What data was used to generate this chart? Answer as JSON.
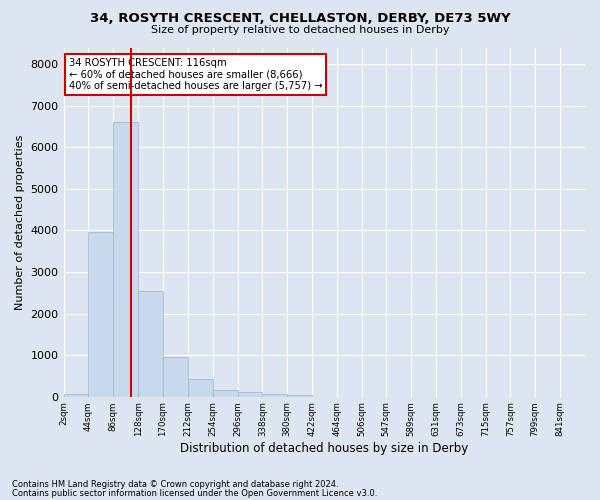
{
  "title1": "34, ROSYTH CRESCENT, CHELLASTON, DERBY, DE73 5WY",
  "title2": "Size of property relative to detached houses in Derby",
  "xlabel": "Distribution of detached houses by size in Derby",
  "ylabel": "Number of detached properties",
  "bar_color": "#c8d9ec",
  "bar_edgecolor": "#9ab4d0",
  "vline_x": 116,
  "vline_color": "#cc0000",
  "annotation_title": "34 ROSYTH CRESCENT: 116sqm",
  "annotation_line1": "← 60% of detached houses are smaller (8,666)",
  "annotation_line2": "40% of semi-detached houses are larger (5,757) →",
  "annotation_box_edgecolor": "#cc0000",
  "bin_edges": [
    2,
    44,
    86,
    128,
    170,
    212,
    254,
    296,
    338,
    380,
    422,
    464,
    506,
    547,
    589,
    631,
    673,
    715,
    757,
    799,
    841
  ],
  "bar_heights": [
    70,
    3950,
    6600,
    2550,
    950,
    430,
    155,
    115,
    70,
    40,
    0,
    0,
    0,
    0,
    0,
    0,
    0,
    0,
    0,
    0
  ],
  "ylim": [
    0,
    8400
  ],
  "yticks": [
    0,
    1000,
    2000,
    3000,
    4000,
    5000,
    6000,
    7000,
    8000
  ],
  "footnote1": "Contains HM Land Registry data © Crown copyright and database right 2024.",
  "footnote2": "Contains public sector information licensed under the Open Government Licence v3.0.",
  "background_color": "#dde5f0",
  "plot_bg_color": "#dde5f0"
}
